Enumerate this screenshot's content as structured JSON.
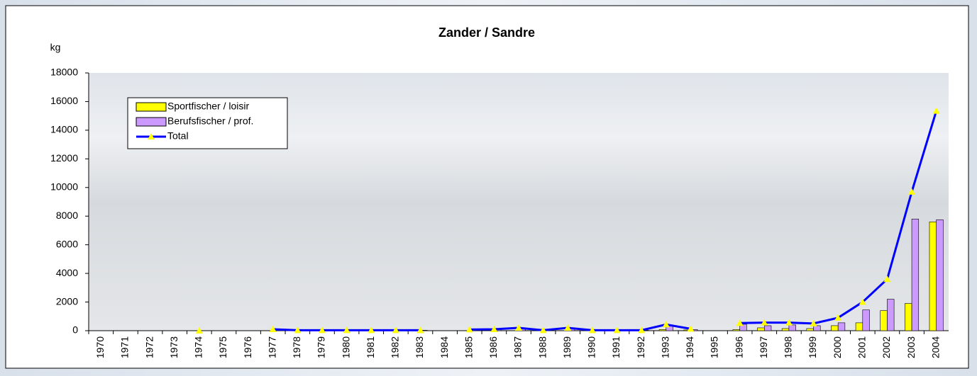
{
  "chart_data": {
    "type": "bar",
    "title": "Zander / Sandre",
    "y_label": "kg",
    "categories": [
      "1970",
      "1971",
      "1972",
      "1973",
      "1974",
      "1975",
      "1976",
      "1977",
      "1978",
      "1979",
      "1980",
      "1981",
      "1982",
      "1983",
      "1984",
      "1985",
      "1986",
      "1987",
      "1988",
      "1989",
      "1990",
      "1991",
      "1992",
      "1993",
      "1994",
      "1995",
      "1996",
      "1997",
      "1998",
      "1999",
      "2000",
      "2001",
      "2002",
      "2003",
      "2004"
    ],
    "series": [
      {
        "name": "Sportfischer / loisir",
        "color": "#ffff00",
        "values": [
          null,
          null,
          null,
          null,
          0,
          null,
          null,
          0,
          0,
          0,
          0,
          0,
          0,
          0,
          null,
          0,
          0,
          0,
          0,
          0,
          0,
          0,
          0,
          80,
          50,
          null,
          80,
          200,
          150,
          150,
          350,
          550,
          1400,
          1900,
          7600
        ]
      },
      {
        "name": "Berufsfischer / prof.",
        "color": "#cc99ff",
        "values": [
          null,
          null,
          null,
          null,
          0,
          null,
          null,
          100,
          30,
          30,
          30,
          30,
          30,
          30,
          null,
          80,
          100,
          200,
          30,
          200,
          30,
          30,
          30,
          350,
          80,
          null,
          450,
          350,
          400,
          350,
          550,
          1450,
          2200,
          7800,
          7750
        ]
      },
      {
        "name": "Total",
        "type": "line",
        "color": "#0000ff",
        "marker_color": "#ffff00",
        "values": [
          null,
          null,
          null,
          null,
          0,
          null,
          null,
          100,
          30,
          30,
          30,
          30,
          30,
          30,
          null,
          80,
          100,
          200,
          30,
          200,
          30,
          30,
          30,
          430,
          130,
          null,
          530,
          560,
          560,
          500,
          900,
          2000,
          3600,
          9700,
          15350
        ]
      }
    ],
    "ylim": [
      0,
      18000
    ],
    "yticks": [
      0,
      2000,
      4000,
      6000,
      8000,
      10000,
      12000,
      14000,
      16000,
      18000
    ],
    "legend": "upper-left"
  }
}
